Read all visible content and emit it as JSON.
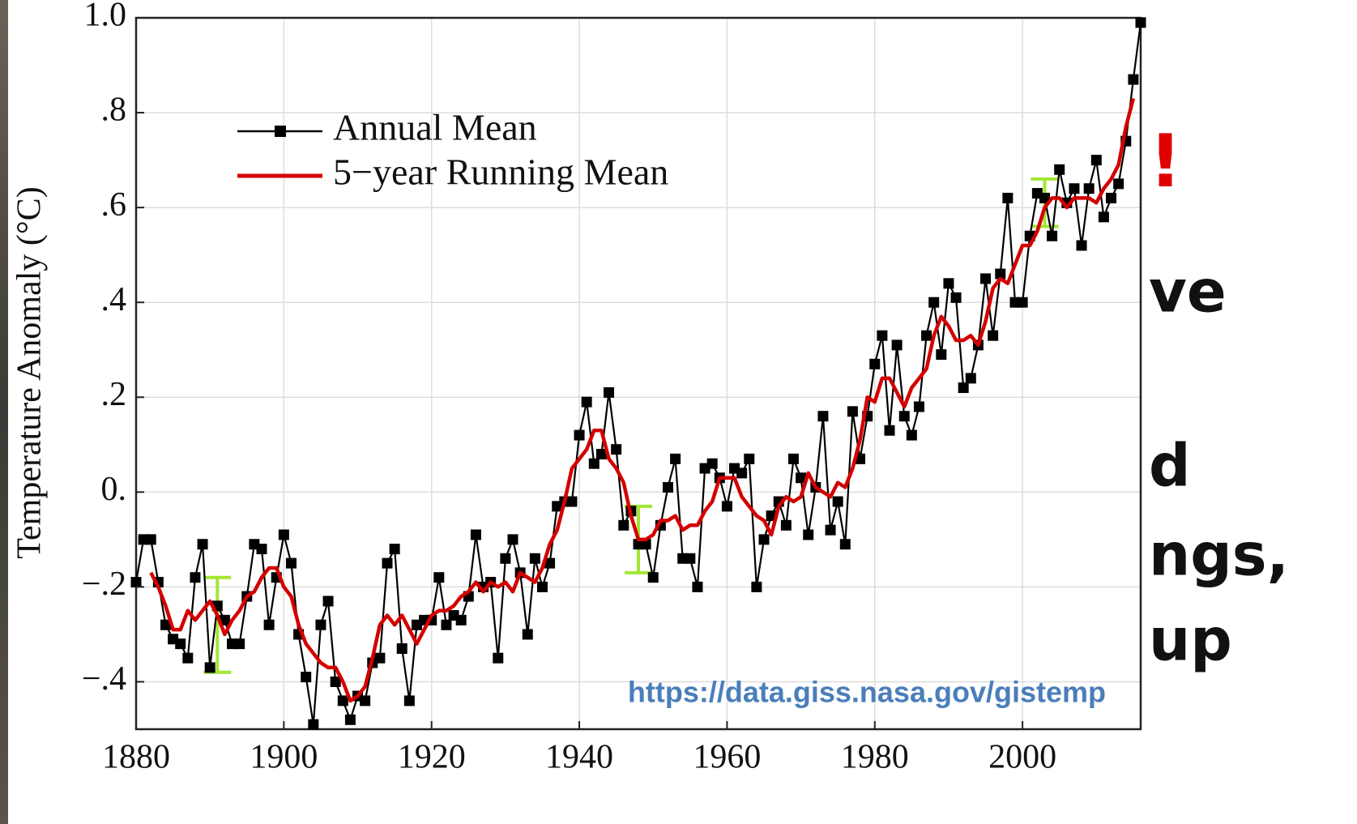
{
  "chart_data": {
    "type": "line",
    "ylabel": "Temperature Anomaly (°C)",
    "source": "https://data.giss.nasa.gov/gistemp",
    "xlim": [
      1880,
      2016
    ],
    "ylim": [
      -0.5,
      1.0
    ],
    "xticks": [
      1880,
      1900,
      1920,
      1940,
      1960,
      1980,
      2000
    ],
    "yticks": [
      {
        "value": -0.4,
        "label": "−.4"
      },
      {
        "value": -0.2,
        "label": "−.2"
      },
      {
        "value": 0,
        "label": "0."
      },
      {
        "value": 0.2,
        "label": ".2"
      },
      {
        "value": 0.4,
        "label": ".4"
      },
      {
        "value": 0.6,
        "label": ".6"
      },
      {
        "value": 0.8,
        "label": ".8"
      },
      {
        "value": 1.0,
        "label": "1.0"
      }
    ],
    "grid": true,
    "legend": "upper left",
    "x": [
      1880,
      1881,
      1882,
      1883,
      1884,
      1885,
      1886,
      1887,
      1888,
      1889,
      1890,
      1891,
      1892,
      1893,
      1894,
      1895,
      1896,
      1897,
      1898,
      1899,
      1900,
      1901,
      1902,
      1903,
      1904,
      1905,
      1906,
      1907,
      1908,
      1909,
      1910,
      1911,
      1912,
      1913,
      1914,
      1915,
      1916,
      1917,
      1918,
      1919,
      1920,
      1921,
      1922,
      1923,
      1924,
      1925,
      1926,
      1927,
      1928,
      1929,
      1930,
      1931,
      1932,
      1933,
      1934,
      1935,
      1936,
      1937,
      1938,
      1939,
      1940,
      1941,
      1942,
      1943,
      1944,
      1945,
      1946,
      1947,
      1948,
      1949,
      1950,
      1951,
      1952,
      1953,
      1954,
      1955,
      1956,
      1957,
      1958,
      1959,
      1960,
      1961,
      1962,
      1963,
      1964,
      1965,
      1966,
      1967,
      1968,
      1969,
      1970,
      1971,
      1972,
      1973,
      1974,
      1975,
      1976,
      1977,
      1978,
      1979,
      1980,
      1981,
      1982,
      1983,
      1984,
      1985,
      1986,
      1987,
      1988,
      1989,
      1990,
      1991,
      1992,
      1993,
      1994,
      1995,
      1996,
      1997,
      1998,
      1999,
      2000,
      2001,
      2002,
      2003,
      2004,
      2005,
      2006,
      2007,
      2008,
      2009,
      2010,
      2011,
      2012,
      2013,
      2014,
      2015,
      2016
    ],
    "series": [
      {
        "name": "Annual Mean",
        "color": "#000000",
        "marker": "square",
        "values": [
          -0.19,
          -0.1,
          -0.1,
          -0.19,
          -0.28,
          -0.31,
          -0.32,
          -0.35,
          -0.18,
          -0.11,
          -0.37,
          -0.24,
          -0.27,
          -0.32,
          -0.32,
          -0.22,
          -0.11,
          -0.12,
          -0.28,
          -0.18,
          -0.09,
          -0.15,
          -0.3,
          -0.39,
          -0.49,
          -0.28,
          -0.23,
          -0.4,
          -0.44,
          -0.48,
          -0.43,
          -0.44,
          -0.36,
          -0.35,
          -0.15,
          -0.12,
          -0.33,
          -0.44,
          -0.28,
          -0.27,
          -0.27,
          -0.18,
          -0.28,
          -0.26,
          -0.27,
          -0.22,
          -0.09,
          -0.2,
          -0.19,
          -0.35,
          -0.14,
          -0.1,
          -0.17,
          -0.3,
          -0.14,
          -0.2,
          -0.15,
          -0.03,
          -0.02,
          -0.02,
          0.12,
          0.19,
          0.06,
          0.08,
          0.21,
          0.09,
          -0.07,
          -0.04,
          -0.11,
          -0.11,
          -0.18,
          -0.07,
          0.01,
          0.07,
          -0.14,
          -0.14,
          -0.2,
          0.05,
          0.06,
          0.03,
          -0.03,
          0.05,
          0.04,
          0.07,
          -0.2,
          -0.1,
          -0.05,
          -0.02,
          -0.07,
          0.07,
          0.03,
          -0.09,
          0.01,
          0.16,
          -0.08,
          -0.02,
          -0.11,
          0.17,
          0.07,
          0.16,
          0.27,
          0.33,
          0.13,
          0.31,
          0.16,
          0.12,
          0.18,
          0.33,
          0.4,
          0.29,
          0.44,
          0.41,
          0.22,
          0.24,
          0.31,
          0.45,
          0.33,
          0.46,
          0.62,
          0.4,
          0.4,
          0.54,
          0.63,
          0.62,
          0.54,
          0.68,
          0.61,
          0.64,
          0.52,
          0.64,
          0.7,
          0.58,
          0.62,
          0.65,
          0.74,
          0.87,
          0.99
        ]
      },
      {
        "name": "5−year Running Mean",
        "color": "#d40000",
        "values": [
          null,
          null,
          -0.17,
          -0.2,
          -0.24,
          -0.29,
          -0.29,
          -0.25,
          -0.27,
          -0.25,
          -0.23,
          -0.26,
          -0.3,
          -0.27,
          -0.25,
          -0.22,
          -0.21,
          -0.18,
          -0.16,
          -0.16,
          -0.2,
          -0.22,
          -0.28,
          -0.32,
          -0.34,
          -0.36,
          -0.37,
          -0.37,
          -0.4,
          -0.44,
          -0.43,
          -0.41,
          -0.35,
          -0.28,
          -0.26,
          -0.28,
          -0.26,
          -0.29,
          -0.32,
          -0.29,
          -0.26,
          -0.25,
          -0.25,
          -0.24,
          -0.22,
          -0.21,
          -0.19,
          -0.21,
          -0.19,
          -0.2,
          -0.19,
          -0.21,
          -0.17,
          -0.18,
          -0.19,
          -0.16,
          -0.11,
          -0.08,
          -0.02,
          0.05,
          0.07,
          0.09,
          0.13,
          0.13,
          0.07,
          0.05,
          0.02,
          -0.05,
          -0.1,
          -0.1,
          -0.09,
          -0.06,
          -0.06,
          -0.05,
          -0.08,
          -0.07,
          -0.07,
          -0.04,
          -0.02,
          0.03,
          0.03,
          0.03,
          -0.01,
          -0.03,
          -0.05,
          -0.06,
          -0.09,
          -0.03,
          -0.01,
          -0.02,
          -0.01,
          0.04,
          0.01,
          0.0,
          -0.01,
          0.02,
          0.01,
          0.05,
          0.11,
          0.2,
          0.19,
          0.24,
          0.24,
          0.21,
          0.18,
          0.22,
          0.24,
          0.26,
          0.33,
          0.37,
          0.35,
          0.32,
          0.32,
          0.33,
          0.31,
          0.36,
          0.43,
          0.45,
          0.44,
          0.48,
          0.52,
          0.52,
          0.55,
          0.6,
          0.62,
          0.62,
          0.6,
          0.62,
          0.62,
          0.62,
          0.61,
          0.64,
          0.66,
          0.69,
          0.77,
          0.83,
          null
        ]
      }
    ],
    "error_bars": {
      "color": "#a3e635",
      "items": [
        {
          "x": 1891,
          "low": -0.38,
          "high": -0.18
        },
        {
          "x": 1948,
          "low": -0.17,
          "high": -0.03
        },
        {
          "x": 2003,
          "low": 0.56,
          "high": 0.66
        }
      ]
    }
  },
  "side_text": [
    "!",
    "ve",
    "d",
    "ngs,",
    "up"
  ]
}
